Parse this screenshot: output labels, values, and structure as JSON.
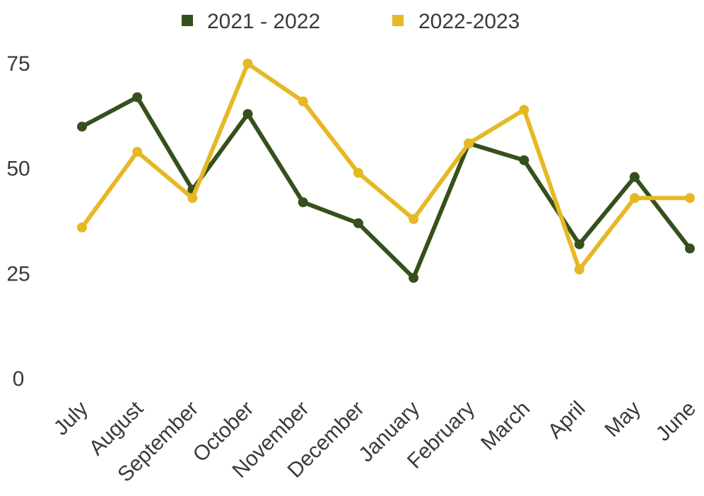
{
  "chart_data": {
    "type": "line",
    "categories": [
      "July",
      "August",
      "September",
      "October",
      "November",
      "December",
      "January",
      "February",
      "March",
      "April",
      "May",
      "June"
    ],
    "series": [
      {
        "name": "2021 - 2022",
        "color": "#35501c",
        "values": [
          60,
          67,
          45,
          63,
          42,
          37,
          24,
          56,
          52,
          32,
          48,
          31
        ]
      },
      {
        "name": "2022-2023",
        "color": "#e6b825",
        "values": [
          36,
          54,
          43,
          75,
          66,
          49,
          38,
          56,
          64,
          26,
          43,
          43
        ]
      }
    ],
    "yticks": [
      "0",
      "25",
      "50",
      "75"
    ],
    "ylim": [
      0,
      75
    ],
    "grid": false,
    "legend": "top-center",
    "title": "",
    "xlabel": "",
    "ylabel": ""
  }
}
